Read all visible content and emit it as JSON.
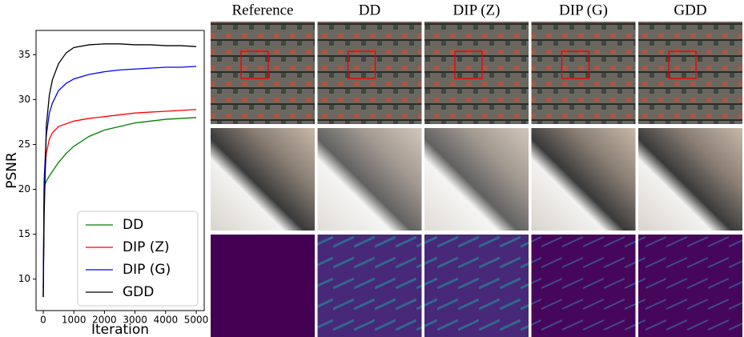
{
  "chart_data": {
    "type": "line",
    "xlabel": "Iteration",
    "ylabel": "PSNR",
    "x": [
      0,
      30,
      100,
      200,
      300,
      500,
      750,
      1000,
      1500,
      2000,
      2500,
      3000,
      3500,
      4000,
      4500,
      5000
    ],
    "series": [
      {
        "name": "DD",
        "color": "#008000",
        "values": [
          8,
          20.3,
          20.9,
          21.5,
          22,
          23,
          24,
          24.8,
          25.9,
          26.6,
          27,
          27.4,
          27.6,
          27.8,
          27.9,
          28.0
        ]
      },
      {
        "name": "DIP (Z)",
        "color": "#ff0000",
        "values": [
          8,
          20.5,
          24,
          25.6,
          26.3,
          27,
          27.3,
          27.6,
          27.9,
          28.1,
          28.3,
          28.5,
          28.6,
          28.7,
          28.8,
          28.9
        ]
      },
      {
        "name": "DIP (G)",
        "color": "#0000ff",
        "values": [
          9,
          21,
          26,
          28.5,
          29.6,
          31,
          31.8,
          32.3,
          32.8,
          33.1,
          33.3,
          33.4,
          33.5,
          33.6,
          33.6,
          33.7
        ]
      },
      {
        "name": "GDD",
        "color": "#000000",
        "values": [
          8,
          17,
          27,
          30.5,
          32.2,
          34,
          35.2,
          35.8,
          36.1,
          36.2,
          36.2,
          36.1,
          36.1,
          36.0,
          36.0,
          35.9
        ]
      }
    ],
    "xlim": [
      -235,
      5260
    ],
    "xticks": [
      0,
      1000,
      2000,
      3000,
      4000,
      5000
    ],
    "ylim": [
      6.5,
      37.7
    ],
    "yticks": [
      10,
      15,
      20,
      25,
      30,
      35
    ],
    "legend": "lower right",
    "grid": false
  },
  "image_grid": {
    "columns": [
      "Reference",
      "DD",
      "DIP (Z)",
      "DIP (G)",
      "GDD"
    ]
  }
}
